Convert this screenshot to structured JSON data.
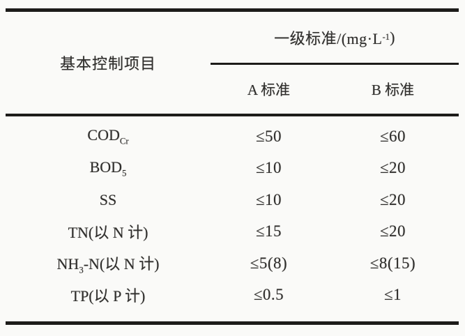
{
  "page": {
    "background_color": "#fafaf8",
    "text_color": "#2e2d2b",
    "rule_color": "#1d1c1a"
  },
  "table": {
    "item_header": "基本控制项目",
    "group_header": {
      "pre": "一级标准/(mg·L",
      "sup": "-1",
      "post": ")"
    },
    "sub_headers": [
      "A 标准",
      "B 标准"
    ],
    "rows": [
      {
        "pre": "COD",
        "sub": "Cr",
        "post": "",
        "a": "≤50",
        "b": "≤60"
      },
      {
        "pre": "BOD",
        "sub": "5",
        "post": "",
        "a": "≤10",
        "b": "≤20"
      },
      {
        "pre": "SS",
        "sub": "",
        "post": "",
        "a": "≤10",
        "b": "≤20"
      },
      {
        "pre": "TN(以 N 计)",
        "sub": "",
        "post": "",
        "a": "≤15",
        "b": "≤20"
      },
      {
        "pre": "NH",
        "sub": "3",
        "post": "-N(以 N 计)",
        "a": "≤5(8)",
        "b": "≤8(15)"
      },
      {
        "pre": "TP(以 P 计)",
        "sub": "",
        "post": "",
        "a": "≤0.5",
        "b": "≤1"
      }
    ]
  },
  "chart_data": {
    "type": "table",
    "columns": [
      "基本控制项目",
      "A 标准",
      "B 标准"
    ],
    "group_header": "一级标准/(mg·L-1)",
    "rows": [
      [
        "CODCr",
        "≤50",
        "≤60"
      ],
      [
        "BOD5",
        "≤10",
        "≤20"
      ],
      [
        "SS",
        "≤10",
        "≤20"
      ],
      [
        "TN(以 N 计)",
        "≤15",
        "≤20"
      ],
      [
        "NH3-N(以 N 计)",
        "≤5(8)",
        "≤8(15)"
      ],
      [
        "TP(以 P 计)",
        "≤0.5",
        "≤1"
      ]
    ]
  }
}
